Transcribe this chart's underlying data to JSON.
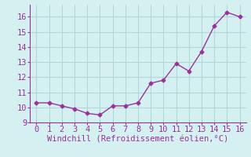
{
  "x": [
    0,
    1,
    2,
    3,
    4,
    5,
    6,
    7,
    8,
    9,
    10,
    11,
    12,
    13,
    14,
    15,
    16
  ],
  "y": [
    10.3,
    10.3,
    10.1,
    9.9,
    9.6,
    9.5,
    10.1,
    10.1,
    10.3,
    11.6,
    11.8,
    12.9,
    12.4,
    13.7,
    15.4,
    16.3,
    16.0
  ],
  "line_color": "#993399",
  "marker": "D",
  "marker_size": 2.5,
  "bg_color": "#d4f0f0",
  "grid_color": "#b0d8d8",
  "xlabel": "Windchill (Refroidissement éolien,°C)",
  "xlabel_color": "#993399",
  "xlabel_fontsize": 7.5,
  "tick_color": "#993399",
  "tick_fontsize": 7.5,
  "xlim": [
    -0.5,
    16.5
  ],
  "ylim": [
    9.0,
    16.8
  ],
  "yticks": [
    9,
    10,
    11,
    12,
    13,
    14,
    15,
    16
  ],
  "xticks": [
    0,
    1,
    2,
    3,
    4,
    5,
    6,
    7,
    8,
    9,
    10,
    11,
    12,
    13,
    14,
    15,
    16
  ],
  "spine_color": "#993399"
}
